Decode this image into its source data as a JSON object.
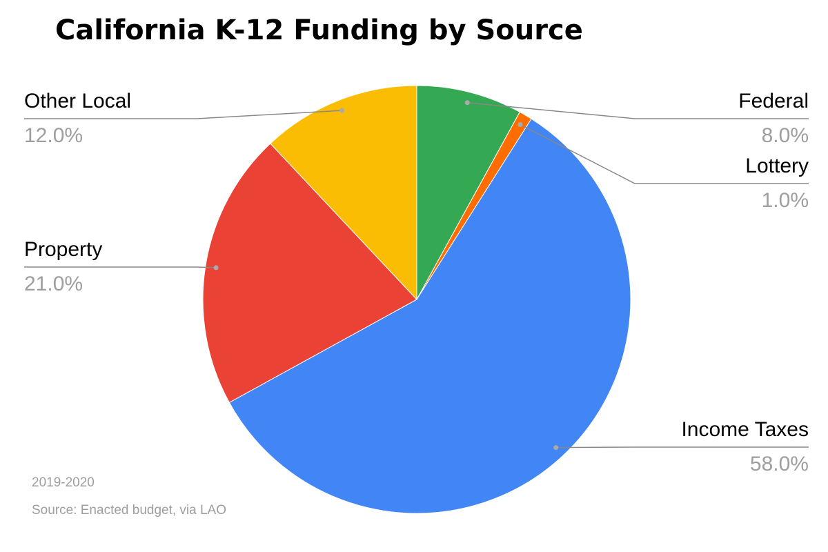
{
  "chart_data": {
    "type": "pie",
    "title": "California K-12 Funding by Source",
    "categories": [
      "Federal",
      "Lottery",
      "Income Taxes",
      "Property",
      "Other Local"
    ],
    "values": [
      8,
      1,
      58,
      21,
      12
    ],
    "value_labels": [
      "8.0%",
      "1.0%",
      "58.0%",
      "21.0%",
      "12.0%"
    ],
    "colors": [
      "#34a853",
      "#ff6d01",
      "#4285f4",
      "#ea4335",
      "#fbbc04"
    ],
    "notes": [
      "2019-2020",
      "Source: Enacted budget, via LAO"
    ]
  }
}
